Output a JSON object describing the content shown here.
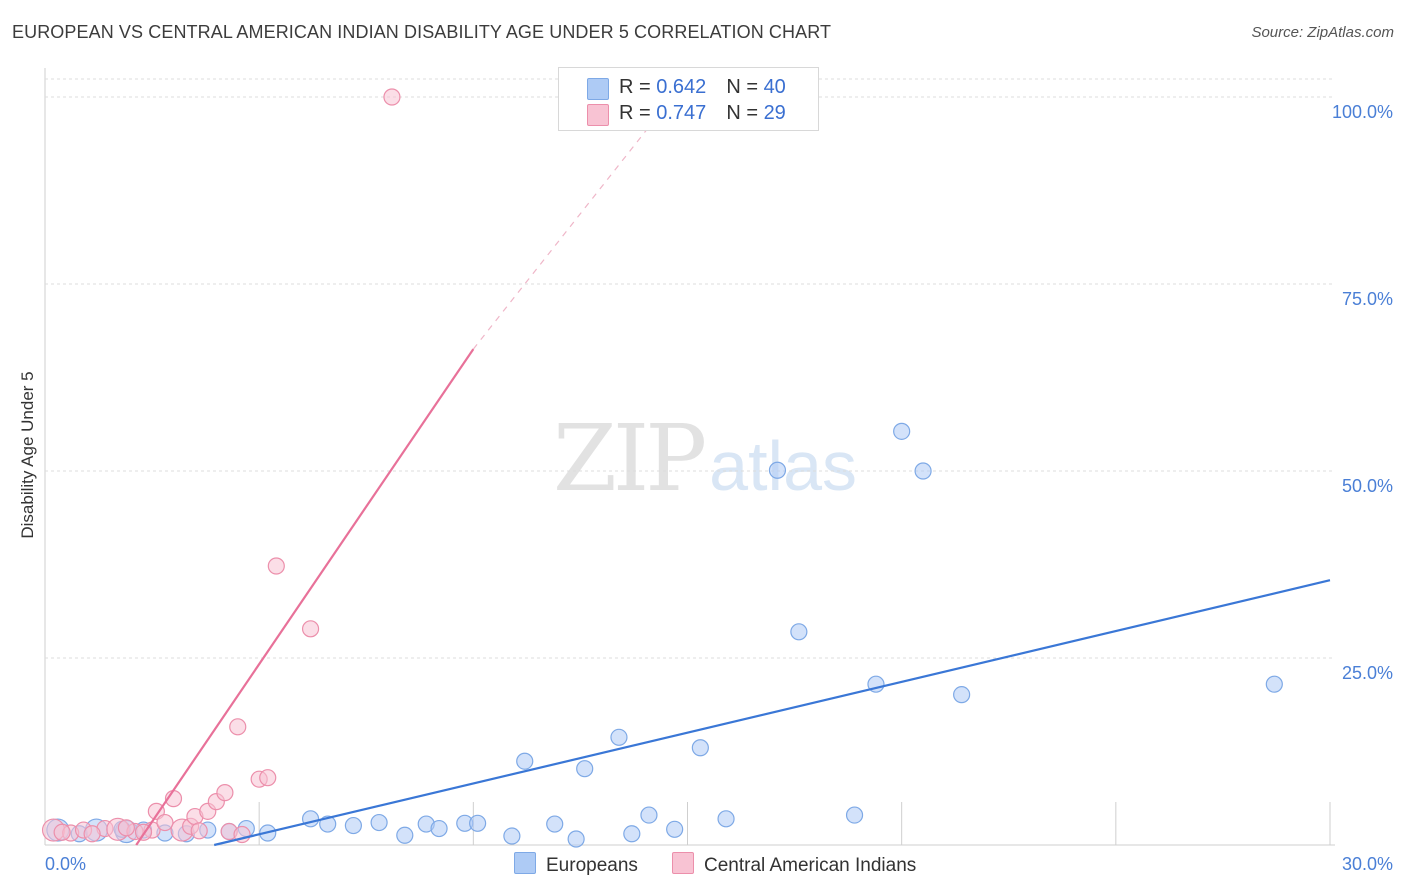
{
  "title": "EUROPEAN VS CENTRAL AMERICAN INDIAN DISABILITY AGE UNDER 5 CORRELATION CHART",
  "source": "Source: ZipAtlas.com",
  "watermark": {
    "zip": "ZIP",
    "atlas": "atlas"
  },
  "legend": {
    "rows": [
      {
        "r_label": "R = ",
        "r_value": "0.642",
        "n_label": "N = ",
        "n_value": "40",
        "color": "#aecbf5",
        "border": "#7ea9e6"
      },
      {
        "r_label": "R = ",
        "r_value": "0.747",
        "n_label": "N = ",
        "n_value": "29",
        "color": "#f8c3d3",
        "border": "#ec8fab"
      }
    ]
  },
  "bottom_legend": {
    "europeans": "Europeans",
    "central": "Central American Indians"
  },
  "chart_data": {
    "type": "scatter",
    "title": "EUROPEAN VS CENTRAL AMERICAN INDIAN DISABILITY AGE UNDER 5 CORRELATION CHART",
    "xlabel": "",
    "ylabel": "Disability Age Under 5",
    "xlim": [
      0,
      30
    ],
    "ylim": [
      0,
      100
    ],
    "x_tick_labels": [
      {
        "value": 0,
        "label": "0.0%"
      },
      {
        "value": 30,
        "label": "30.0%"
      }
    ],
    "y_tick_labels": [
      {
        "value": 25,
        "label": "25.0%"
      },
      {
        "value": 50,
        "label": "50.0%"
      },
      {
        "value": 75,
        "label": "75.0%"
      },
      {
        "value": 100,
        "label": "100.0%"
      }
    ],
    "grid": true,
    "series": [
      {
        "name": "Europeans",
        "color": "#aecbf5",
        "stroke": "#7ea9e6",
        "line_color": "#3a77d6",
        "trend": {
          "x0": 3.95,
          "y0": 0,
          "x1": 30,
          "y1": 35.4
        },
        "points": [
          {
            "x": 0.3,
            "y": 2.0,
            "big": true
          },
          {
            "x": 0.8,
            "y": 1.5
          },
          {
            "x": 1.2,
            "y": 2.0,
            "big": true
          },
          {
            "x": 1.9,
            "y": 1.8,
            "big": true
          },
          {
            "x": 2.3,
            "y": 2.0
          },
          {
            "x": 2.8,
            "y": 1.6
          },
          {
            "x": 3.3,
            "y": 1.5
          },
          {
            "x": 3.8,
            "y": 2.0
          },
          {
            "x": 4.3,
            "y": 1.8
          },
          {
            "x": 4.7,
            "y": 2.2
          },
          {
            "x": 5.2,
            "y": 1.6
          },
          {
            "x": 6.2,
            "y": 3.5
          },
          {
            "x": 6.6,
            "y": 2.8
          },
          {
            "x": 7.2,
            "y": 2.6
          },
          {
            "x": 7.8,
            "y": 3.0
          },
          {
            "x": 8.4,
            "y": 1.3
          },
          {
            "x": 8.9,
            "y": 2.8
          },
          {
            "x": 9.2,
            "y": 2.2
          },
          {
            "x": 9.8,
            "y": 2.9
          },
          {
            "x": 10.1,
            "y": 2.9
          },
          {
            "x": 10.9,
            "y": 1.2
          },
          {
            "x": 11.2,
            "y": 11.2
          },
          {
            "x": 11.9,
            "y": 2.8
          },
          {
            "x": 12.4,
            "y": 0.8
          },
          {
            "x": 12.6,
            "y": 10.2
          },
          {
            "x": 13.4,
            "y": 14.4
          },
          {
            "x": 13.7,
            "y": 1.5
          },
          {
            "x": 14.1,
            "y": 4.0
          },
          {
            "x": 14.7,
            "y": 2.1
          },
          {
            "x": 15.3,
            "y": 13.0
          },
          {
            "x": 15.9,
            "y": 3.5
          },
          {
            "x": 17.1,
            "y": 50.1
          },
          {
            "x": 17.6,
            "y": 28.5
          },
          {
            "x": 18.9,
            "y": 4.0
          },
          {
            "x": 19.4,
            "y": 21.5
          },
          {
            "x": 20.0,
            "y": 55.3
          },
          {
            "x": 20.5,
            "y": 50.0
          },
          {
            "x": 21.4,
            "y": 20.1
          },
          {
            "x": 28.7,
            "y": 21.5
          },
          {
            "x": 1.8,
            "y": 2.1
          }
        ]
      },
      {
        "name": "Central American Indians",
        "color": "#f8c3d3",
        "stroke": "#ec8fab",
        "line_color": "#e87199",
        "trend": {
          "x0": 2.13,
          "y0": 0,
          "x1": 10.0,
          "y1": 66.3
        },
        "trend_dashed": {
          "x0": 10.0,
          "y0": 66.3,
          "x1": 14.1,
          "y1": 96.0
        },
        "points": [
          {
            "x": 0.2,
            "y": 2.0,
            "big": true
          },
          {
            "x": 0.6,
            "y": 1.6
          },
          {
            "x": 0.9,
            "y": 2.0
          },
          {
            "x": 1.4,
            "y": 2.2
          },
          {
            "x": 1.7,
            "y": 2.1,
            "big": true
          },
          {
            "x": 2.1,
            "y": 1.8
          },
          {
            "x": 2.5,
            "y": 2.0
          },
          {
            "x": 2.6,
            "y": 4.5
          },
          {
            "x": 2.8,
            "y": 3.0
          },
          {
            "x": 3.0,
            "y": 6.2
          },
          {
            "x": 3.2,
            "y": 2.0,
            "big": true
          },
          {
            "x": 3.4,
            "y": 2.5
          },
          {
            "x": 3.5,
            "y": 3.8
          },
          {
            "x": 3.8,
            "y": 4.5
          },
          {
            "x": 4.0,
            "y": 5.8
          },
          {
            "x": 4.2,
            "y": 7.0
          },
          {
            "x": 4.5,
            "y": 15.8
          },
          {
            "x": 4.3,
            "y": 1.8
          },
          {
            "x": 5.0,
            "y": 8.8
          },
          {
            "x": 5.2,
            "y": 9.0
          },
          {
            "x": 5.4,
            "y": 37.3
          },
          {
            "x": 6.2,
            "y": 28.9
          },
          {
            "x": 8.1,
            "y": 100.0
          },
          {
            "x": 1.1,
            "y": 1.5
          },
          {
            "x": 2.3,
            "y": 1.7
          },
          {
            "x": 3.6,
            "y": 1.9
          },
          {
            "x": 0.4,
            "y": 1.7
          },
          {
            "x": 1.9,
            "y": 2.3
          },
          {
            "x": 4.6,
            "y": 1.4
          }
        ]
      }
    ]
  }
}
